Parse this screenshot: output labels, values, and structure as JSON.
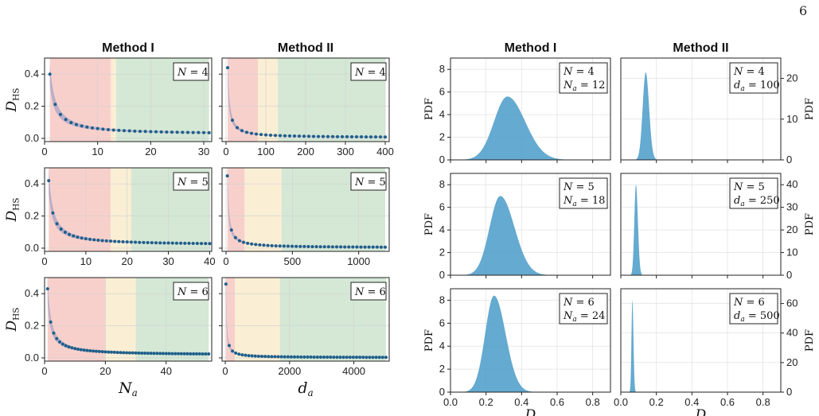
{
  "page_number": "6",
  "colors": {
    "red_region": "#f4b0a8",
    "yellow_region": "#f6e3b8",
    "green_region": "#b7d9b9",
    "band": "#a7a3c7",
    "points": "#1f5f8b",
    "pdf_fill": "#4a9bc8"
  },
  "chart_data": [
    {
      "id": "left-r1c1",
      "type": "scatter",
      "title": "Method I",
      "ylabel": "D_HS",
      "xlim": [
        0,
        31.5
      ],
      "ylim": [
        -0.02,
        0.5
      ],
      "xticks": [
        0,
        10,
        20,
        30
      ],
      "yticks": [
        0.0,
        0.2,
        0.4
      ],
      "annotation": "N = 4",
      "regions": [
        {
          "color": "red",
          "from": 1,
          "to": 12.5
        },
        {
          "color": "yellow",
          "from": 12.5,
          "to": 13.5
        },
        {
          "color": "green",
          "from": 13.5,
          "to": 31
        }
      ],
      "points_x_range": [
        1,
        31
      ],
      "points_count": 31,
      "first_y": 0.4,
      "end_y": 0.025
    },
    {
      "id": "left-r1c2",
      "type": "scatter",
      "title": "Method II",
      "xlim": [
        -10,
        410
      ],
      "ylim": [
        -0.02,
        0.5
      ],
      "xticks": [
        0,
        100,
        200,
        300,
        400
      ],
      "yticks": [
        0.0,
        0.2,
        0.4
      ],
      "annotation": "N = 4",
      "regions": [
        {
          "color": "red",
          "from": 4,
          "to": 80
        },
        {
          "color": "yellow",
          "from": 80,
          "to": 130
        },
        {
          "color": "green",
          "from": 130,
          "to": 400
        }
      ],
      "points_x_range": [
        4,
        400
      ],
      "points_count": 34,
      "first_y": 0.44,
      "end_y": 0.005
    },
    {
      "id": "left-r2c1",
      "type": "scatter",
      "ylabel": "D_HS",
      "xlim": [
        0,
        40.5
      ],
      "ylim": [
        -0.02,
        0.5
      ],
      "xticks": [
        0,
        10,
        20,
        30,
        40
      ],
      "yticks": [
        0.0,
        0.2,
        0.4
      ],
      "annotation": "N = 5",
      "regions": [
        {
          "color": "red",
          "from": 1,
          "to": 16
        },
        {
          "color": "yellow",
          "from": 16,
          "to": 21
        },
        {
          "color": "green",
          "from": 21,
          "to": 40
        }
      ],
      "points_x_range": [
        1,
        40
      ],
      "points_count": 40,
      "first_y": 0.42,
      "end_y": 0.02
    },
    {
      "id": "left-r2c2",
      "type": "scatter",
      "xlim": [
        -30,
        1230
      ],
      "ylim": [
        -0.02,
        0.5
      ],
      "xticks": [
        0,
        500,
        1000
      ],
      "yticks": [
        0.0,
        0.2,
        0.4
      ],
      "annotation": "N = 5",
      "regions": [
        {
          "color": "red",
          "from": 10,
          "to": 140
        },
        {
          "color": "yellow",
          "from": 140,
          "to": 420
        },
        {
          "color": "green",
          "from": 420,
          "to": 1200
        }
      ],
      "points_x_range": [
        10,
        1200
      ],
      "points_count": 40,
      "first_y": 0.45,
      "end_y": 0.003
    },
    {
      "id": "left-r3c1",
      "type": "scatter",
      "ylabel": "D_HS",
      "xlabel": "N_a",
      "xlim": [
        0,
        55
      ],
      "ylim": [
        -0.02,
        0.5
      ],
      "xticks": [
        0,
        20,
        40
      ],
      "yticks": [
        0.0,
        0.2,
        0.4
      ],
      "annotation": "N = 6",
      "regions": [
        {
          "color": "red",
          "from": 1,
          "to": 20
        },
        {
          "color": "yellow",
          "from": 20,
          "to": 30
        },
        {
          "color": "green",
          "from": 30,
          "to": 54
        }
      ],
      "points_x_range": [
        1,
        54
      ],
      "points_count": 54,
      "first_y": 0.43,
      "end_y": 0.018
    },
    {
      "id": "left-r3c2",
      "type": "scatter",
      "xlabel": "d_a",
      "xlim": [
        -100,
        5100
      ],
      "ylim": [
        -0.02,
        0.5
      ],
      "xticks": [
        0,
        2000,
        4000
      ],
      "yticks": [
        0.0,
        0.2,
        0.4
      ],
      "annotation": "N = 6",
      "regions": [
        {
          "color": "red",
          "from": 20,
          "to": 300
        },
        {
          "color": "yellow",
          "from": 300,
          "to": 1700
        },
        {
          "color": "green",
          "from": 1700,
          "to": 5000
        }
      ],
      "points_x_range": [
        20,
        5000
      ],
      "points_count": 50,
      "first_y": 0.46,
      "end_y": 0.002
    },
    {
      "id": "right-r1c1",
      "type": "area",
      "title": "Method I",
      "ylabel": "PDF",
      "xlim": [
        0,
        0.9
      ],
      "ylim": [
        0,
        9
      ],
      "yticks": [
        0,
        2,
        4,
        6,
        8
      ],
      "ann_lines": [
        "N = 4",
        "N_a = 12"
      ],
      "peak_x": 0.32,
      "peak_y": 5.6,
      "sigma_left": 0.075,
      "sigma_right": 0.1
    },
    {
      "id": "right-r1c2",
      "type": "area",
      "title": "Method II",
      "ylabel": "PDF",
      "ylim": [
        0,
        25
      ],
      "yticks": [
        0,
        10,
        20
      ],
      "ann_lines": [
        "N = 4",
        "d_a = 100"
      ],
      "peak_x": 0.14,
      "peak_y": 21.5,
      "sigma_left": 0.017,
      "sigma_right": 0.019
    },
    {
      "id": "right-r2c1",
      "type": "area",
      "ylabel": "PDF",
      "xlim": [
        0,
        0.9
      ],
      "ylim": [
        0,
        9
      ],
      "yticks": [
        0,
        2,
        4,
        6,
        8
      ],
      "ann_lines": [
        "N = 5",
        "N_a = 18"
      ],
      "peak_x": 0.28,
      "peak_y": 7.0,
      "sigma_left": 0.06,
      "sigma_right": 0.08
    },
    {
      "id": "right-r2c2",
      "type": "area",
      "ylabel": "PDF",
      "ylim": [
        0,
        45
      ],
      "yticks": [
        0,
        10,
        20,
        30,
        40
      ],
      "ann_lines": [
        "N = 5",
        "d_a = 250"
      ],
      "peak_x": 0.085,
      "peak_y": 40,
      "sigma_left": 0.009,
      "sigma_right": 0.011
    },
    {
      "id": "right-r3c1",
      "type": "area",
      "ylabel": "PDF",
      "xlabel": "D",
      "xlim": [
        0,
        0.9
      ],
      "ylim": [
        0,
        9
      ],
      "xticks": [
        0.0,
        0.2,
        0.4,
        0.6,
        0.8
      ],
      "yticks": [
        0,
        2,
        4,
        6,
        8
      ],
      "ann_lines": [
        "N = 6",
        "N_a = 24"
      ],
      "peak_x": 0.245,
      "peak_y": 8.4,
      "sigma_left": 0.05,
      "sigma_right": 0.065
    },
    {
      "id": "right-r3c2",
      "type": "area",
      "ylabel": "PDF",
      "xlabel": "D",
      "ylim": [
        0,
        70
      ],
      "xticks": [
        0.0,
        0.2,
        0.4,
        0.6,
        0.8
      ],
      "yticks": [
        0,
        20,
        40,
        60
      ],
      "ann_lines": [
        "N = 6",
        "d_a = 500"
      ],
      "peak_x": 0.065,
      "peak_y": 62,
      "sigma_left": 0.005,
      "sigma_right": 0.006
    }
  ]
}
